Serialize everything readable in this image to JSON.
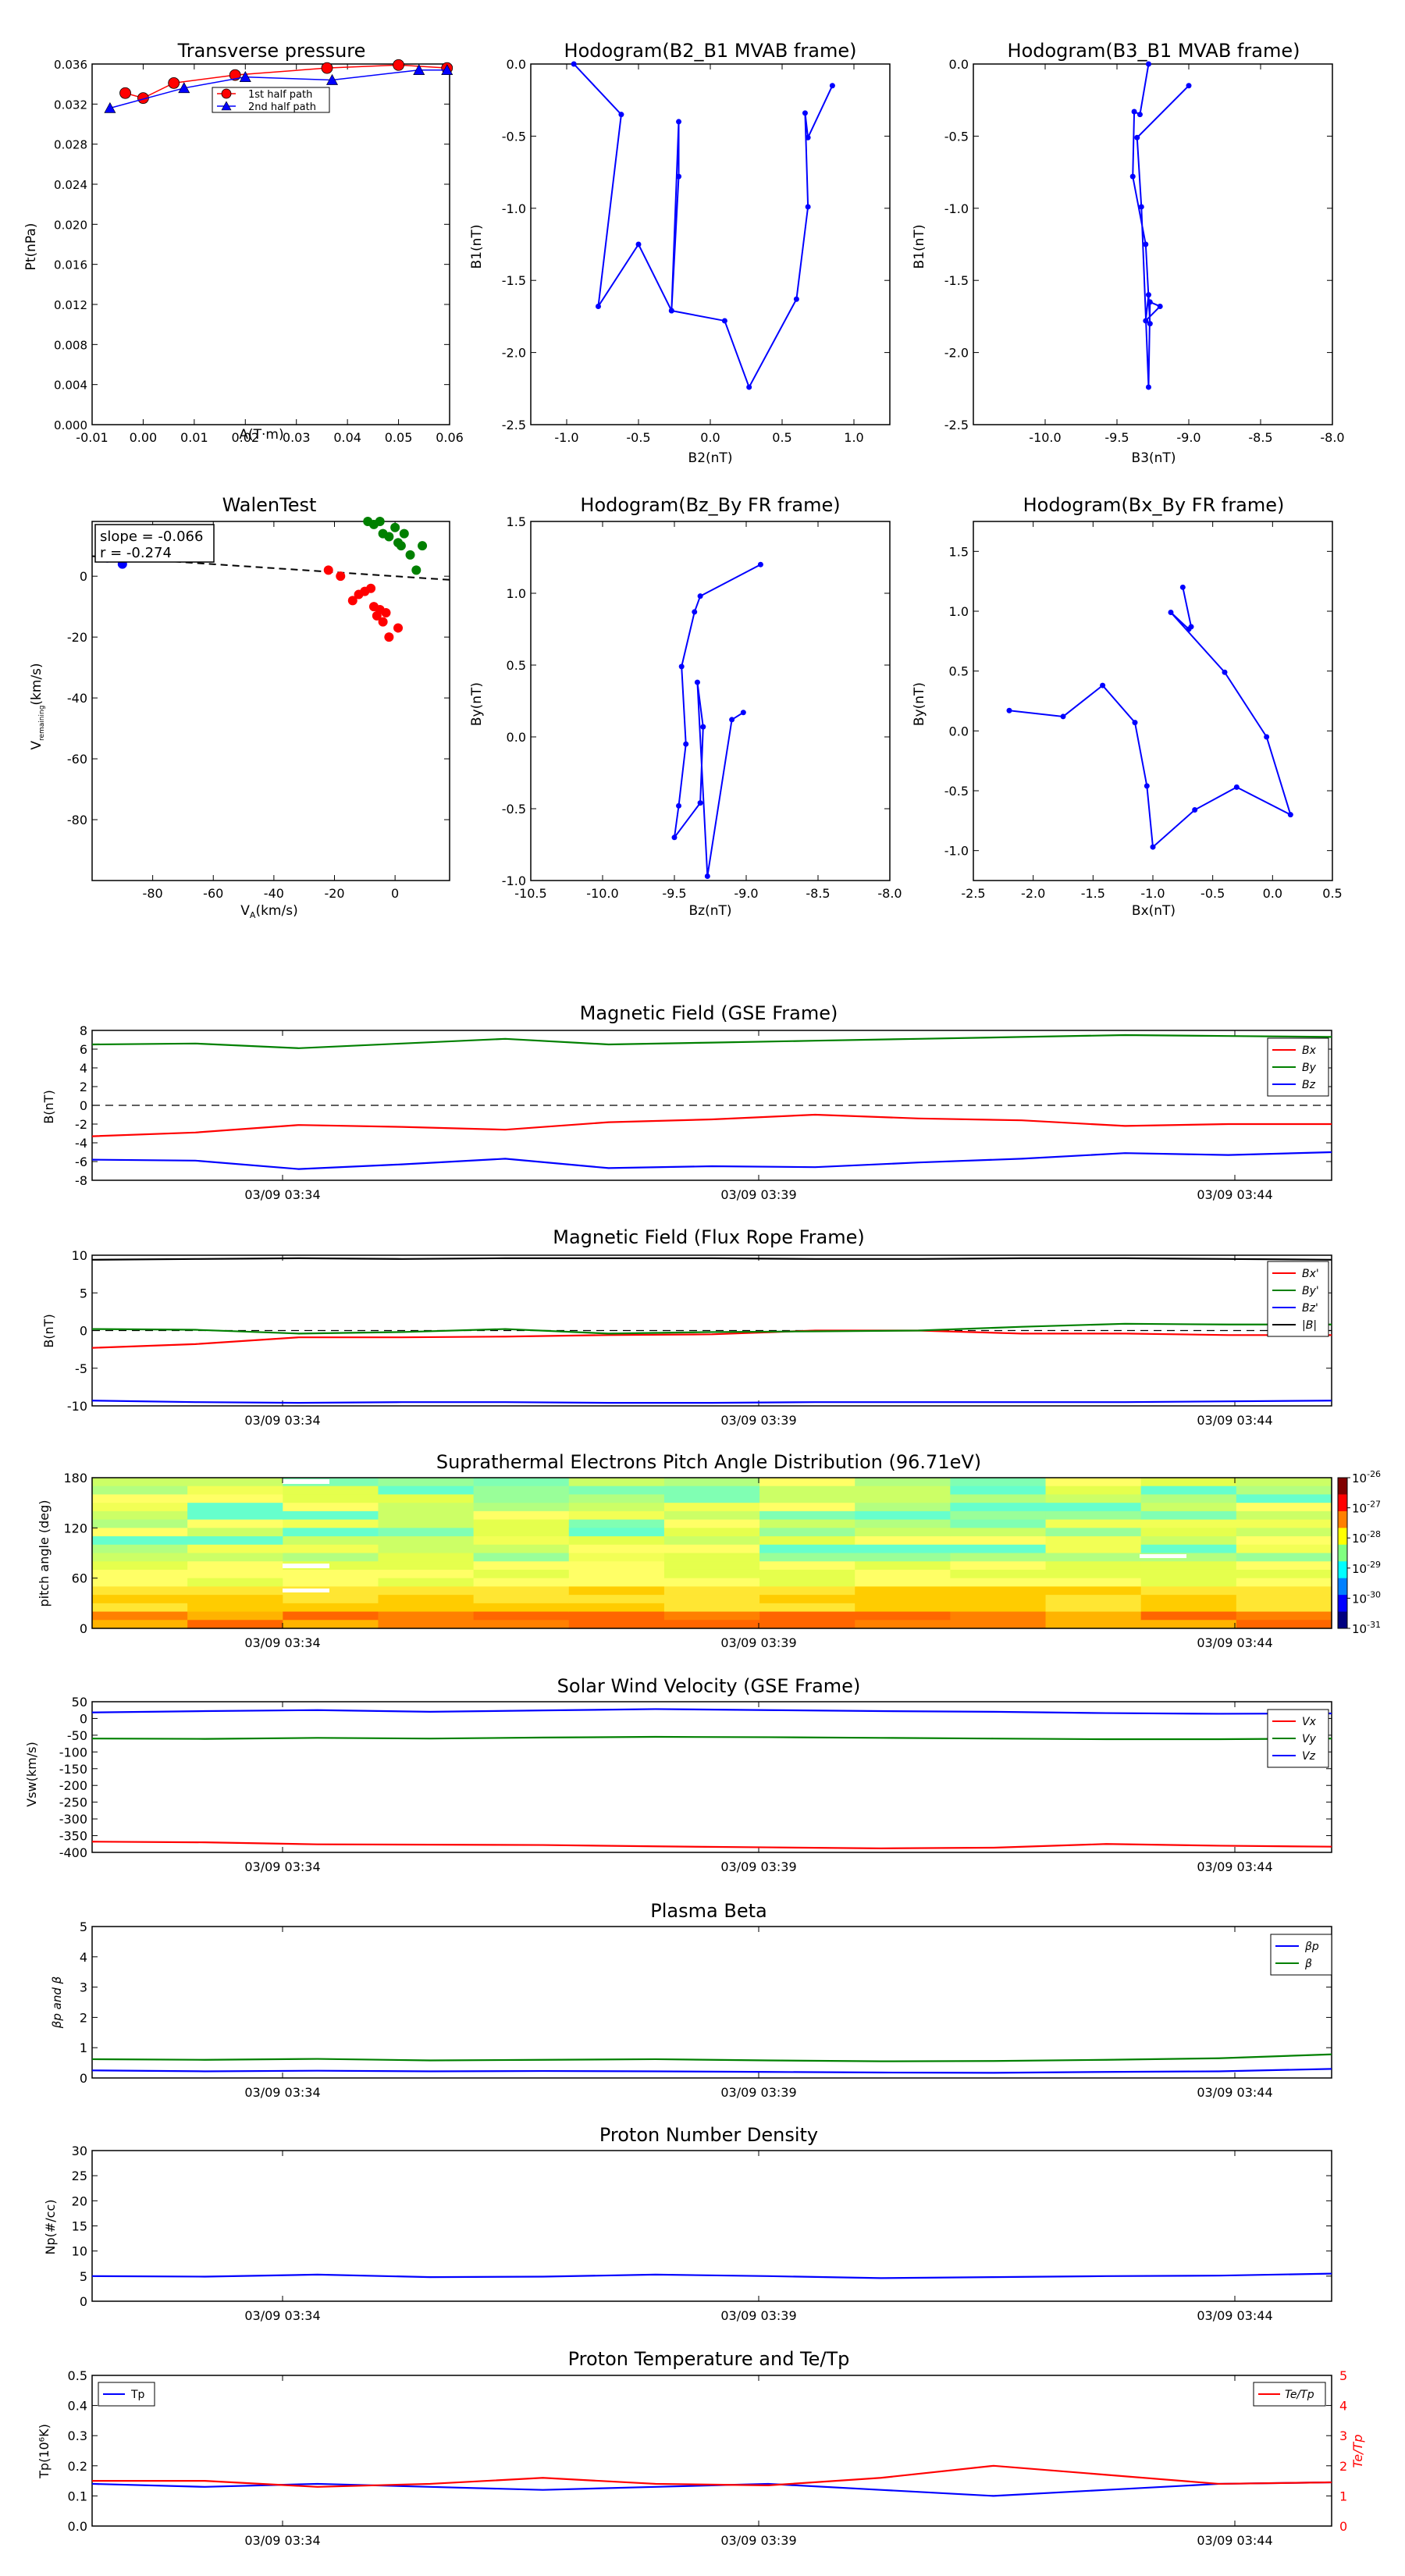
{
  "panels": {
    "transverse_pressure": {
      "title": "Transverse pressure",
      "xlabel": "A(T·m)",
      "ylabel": "Pt(nPa)",
      "xlim": [
        -0.01,
        0.06
      ],
      "ylim": [
        0.0,
        0.036
      ],
      "xticks": [
        "-0.01",
        "0.00",
        "0.01",
        "0.02",
        "0.03",
        "0.04",
        "0.05",
        "0.06"
      ],
      "yticks": [
        "0.000",
        "0.004",
        "0.008",
        "0.012",
        "0.016",
        "0.020",
        "0.024",
        "0.028",
        "0.032",
        "0.036"
      ],
      "legend": [
        "1st half path",
        "2nd half path"
      ],
      "series1": {
        "x": [
          -0.0035,
          0.0,
          0.006,
          0.018,
          0.036,
          0.05,
          0.0595
        ],
        "y": [
          0.0331,
          0.0326,
          0.0341,
          0.0349,
          0.0356,
          0.0359,
          0.0356
        ]
      },
      "series2": {
        "x": [
          -0.0065,
          0.008,
          0.02,
          0.037,
          0.054,
          0.0595
        ],
        "y": [
          0.0316,
          0.0336,
          0.0347,
          0.0344,
          0.0354,
          0.0354
        ]
      }
    },
    "hodo_b2b1": {
      "title": "Hodogram(B2_B1 MVAB frame)",
      "xlabel": "B2(nT)",
      "ylabel": "B1(nT)",
      "xlim": [
        -1.25,
        1.25
      ],
      "ylim": [
        -2.5,
        0.0
      ],
      "xticks": [
        "-1.0",
        "-0.5",
        "0.0",
        "0.5",
        "1.0"
      ],
      "yticks": [
        "-2.5",
        "-2.0",
        "-1.5",
        "-1.0",
        "-0.5",
        "0.0"
      ],
      "x": [
        -0.95,
        -0.62,
        -0.78,
        -0.5,
        -0.27,
        -0.22,
        -0.22,
        -0.27,
        0.1,
        0.27,
        0.6,
        0.68,
        0.66,
        0.68,
        0.85
      ],
      "y": [
        0.0,
        -0.35,
        -1.68,
        -1.25,
        -1.71,
        -0.78,
        -0.4,
        -1.71,
        -1.78,
        -2.24,
        -1.63,
        -0.99,
        -0.34,
        -0.51,
        -0.15
      ]
    },
    "hodo_b3b1": {
      "title": "Hodogram(B3_B1 MVAB frame)",
      "xlabel": "B3(nT)",
      "ylabel": "B1(nT)",
      "xlim": [
        -10.5,
        -8.0
      ],
      "ylim": [
        -2.5,
        0.0
      ],
      "xticks": [
        "-10.0",
        "-9.5",
        "-9.0",
        "-8.5",
        "-8.0"
      ],
      "yticks": [
        "-2.5",
        "-2.0",
        "-1.5",
        "-1.0",
        "-0.5",
        "0.0"
      ],
      "x": [
        -9.28,
        -9.34,
        -9.38,
        -9.39,
        -9.3,
        -9.27,
        -9.28,
        -9.3,
        -9.2,
        -9.27,
        -9.28,
        -9.33,
        -9.36,
        -9.0
      ],
      "y": [
        0.0,
        -0.35,
        -0.33,
        -0.78,
        -1.25,
        -1.8,
        -1.6,
        -1.78,
        -1.68,
        -1.65,
        -2.24,
        -0.99,
        -0.51,
        -0.15
      ]
    },
    "walen": {
      "title": "WalenTest",
      "xlabel": "V_A(km/s)",
      "ylabel": "V_remaining(km/s)",
      "xlim": [
        -100,
        18
      ],
      "ylim": [
        -100,
        18
      ],
      "xticks": [
        "-80",
        "-60",
        "-40",
        "-20",
        "0"
      ],
      "yticks": [
        "-80",
        "-60",
        "-40",
        "-20",
        "0"
      ],
      "slope_text": "slope = -0.066",
      "r_text": "r = -0.274",
      "slope": -0.066,
      "blue_points": {
        "x": [
          -95,
          -90
        ],
        "y": [
          6,
          4
        ]
      },
      "red_points": {
        "x": [
          -22,
          -18,
          -14,
          -12,
          -10,
          -8,
          -7,
          -6,
          -5,
          -4,
          -3,
          -2,
          1
        ],
        "y": [
          2,
          0,
          -8,
          -6,
          -5,
          -4,
          -10,
          -13,
          -11,
          -15,
          -12,
          -20,
          -17
        ]
      },
      "green_points": {
        "x": [
          -9,
          -7,
          -5,
          -4,
          -2,
          0,
          1,
          2,
          3,
          5,
          7,
          9
        ],
        "y": [
          18,
          17,
          18,
          14,
          13,
          16,
          11,
          10,
          14,
          7,
          2,
          10
        ]
      }
    },
    "hodo_bzby": {
      "title": "Hodogram(Bz_By FR frame)",
      "xlabel": "Bz(nT)",
      "ylabel": "By(nT)",
      "xlim": [
        -10.5,
        -8.0
      ],
      "ylim": [
        -1.0,
        1.5
      ],
      "xticks": [
        "-10.5",
        "-10.0",
        "-9.5",
        "-9.0",
        "-8.5",
        "-8.0"
      ],
      "yticks": [
        "-1.0",
        "-0.5",
        "0.0",
        "0.5",
        "1.0",
        "1.5"
      ],
      "x": [
        -8.9,
        -9.32,
        -9.36,
        -9.45,
        -9.42,
        -9.47,
        -9.5,
        -9.32,
        -9.3,
        -9.34,
        -9.27,
        -9.1,
        -9.02
      ],
      "y": [
        1.2,
        0.98,
        0.87,
        0.49,
        -0.05,
        -0.48,
        -0.7,
        -0.46,
        0.07,
        0.38,
        -0.97,
        0.12,
        0.17
      ]
    },
    "hodo_bxby": {
      "title": "Hodogram(Bx_By FR frame)",
      "xlabel": "Bx(nT)",
      "ylabel": "By(nT)",
      "xlim": [
        -2.5,
        0.5
      ],
      "ylim": [
        -1.25,
        1.75
      ],
      "xticks": [
        "-2.5",
        "-2.0",
        "-1.5",
        "-1.0",
        "-0.5",
        "0.0",
        "0.5"
      ],
      "yticks": [
        "-1.0",
        "-0.5",
        "0.0",
        "0.5",
        "1.0",
        "1.5"
      ],
      "x": [
        -0.75,
        -0.68,
        -0.7,
        -0.85,
        -0.4,
        -0.05,
        0.15,
        -0.3,
        -0.65,
        -1.0,
        -1.05,
        -1.15,
        -1.42,
        -1.75,
        -2.2
      ],
      "y": [
        1.2,
        0.87,
        0.85,
        0.99,
        0.49,
        -0.05,
        -0.7,
        -0.47,
        -0.66,
        -0.97,
        -0.46,
        0.07,
        0.38,
        0.12,
        0.17
      ]
    },
    "mag_gse": {
      "title": "Magnetic Field (GSE Frame)",
      "ylabel": "B(nT)",
      "ylim": [
        -8,
        8
      ],
      "yticks": [
        "-8",
        "-6",
        "-4",
        "-2",
        "0",
        "2",
        "4",
        "6",
        "8"
      ],
      "legend": [
        "Bx",
        "By",
        "Bz"
      ],
      "series": [
        {
          "name": "Bx",
          "color": "#ff0000",
          "values": [
            -3.3,
            -2.9,
            -2.1,
            -2.3,
            -2.6,
            -1.8,
            -1.5,
            -1.0,
            -1.4,
            -1.6,
            -2.2,
            -2.0,
            -2.0
          ]
        },
        {
          "name": "By",
          "color": "#008000",
          "values": [
            6.5,
            6.6,
            6.1,
            6.6,
            7.1,
            6.5,
            6.7,
            6.9,
            7.1,
            7.3,
            7.5,
            7.4,
            7.3
          ]
        },
        {
          "name": "Bz",
          "color": "#0000ff",
          "values": [
            -5.8,
            -5.9,
            -6.8,
            -6.3,
            -5.7,
            -6.7,
            -6.5,
            -6.6,
            -6.1,
            -5.7,
            -5.1,
            -5.3,
            -5.0
          ]
        }
      ]
    },
    "mag_fr": {
      "title": "Magnetic Field (Flux Rope Frame)",
      "ylabel": "B(nT)",
      "ylim": [
        -10,
        10
      ],
      "yticks": [
        "-10",
        "-5",
        "0",
        "5",
        "10"
      ],
      "legend": [
        "Bx'",
        "By'",
        "Bz'",
        "|B|"
      ],
      "series": [
        {
          "name": "Bx'",
          "color": "#ff0000",
          "values": [
            -2.3,
            -1.8,
            -0.9,
            -0.9,
            -0.8,
            -0.6,
            -0.5,
            0.0,
            0.0,
            -0.4,
            -0.4,
            -0.6,
            -0.6
          ]
        },
        {
          "name": "By'",
          "color": "#008000",
          "values": [
            0.2,
            0.1,
            -0.4,
            -0.2,
            0.2,
            -0.4,
            -0.2,
            -0.1,
            0.0,
            0.5,
            0.9,
            0.8,
            0.8
          ]
        },
        {
          "name": "Bz'",
          "color": "#0000ff",
          "values": [
            -9.3,
            -9.5,
            -9.6,
            -9.5,
            -9.5,
            -9.6,
            -9.6,
            -9.5,
            -9.5,
            -9.5,
            -9.5,
            -9.4,
            -9.3
          ]
        },
        {
          "name": "|B|",
          "color": "#000000",
          "values": [
            9.4,
            9.5,
            9.6,
            9.5,
            9.6,
            9.6,
            9.6,
            9.5,
            9.5,
            9.6,
            9.6,
            9.5,
            9.4
          ]
        }
      ]
    },
    "pad": {
      "title": "Suprathermal Electrons Pitch Angle Distribution (96.71eV)",
      "ylabel": "pitch angle (deg)",
      "yticks": [
        "0",
        "60",
        "120",
        "180"
      ],
      "cbar_ticks": [
        "10",
        "10",
        "10",
        "10",
        "10",
        "10"
      ],
      "cbar_exps": [
        "-26",
        "-27",
        "-28",
        "-29",
        "-30",
        "-31"
      ]
    },
    "vsw": {
      "title": "Solar Wind Velocity (GSE Frame)",
      "ylabel": "Vsw(km/s)",
      "ylim": [
        -400,
        50
      ],
      "yticks": [
        "-400",
        "-350",
        "-300",
        "-250",
        "-200",
        "-150",
        "-100",
        "-50",
        "0",
        "50"
      ],
      "legend": [
        "Vx",
        "Vy",
        "Vz"
      ],
      "series": [
        {
          "name": "Vx",
          "color": "#ff0000",
          "values": [
            -368,
            -370,
            -376,
            -377,
            -378,
            -382,
            -385,
            -388,
            -386,
            -375,
            -380,
            -383
          ]
        },
        {
          "name": "Vy",
          "color": "#008000",
          "values": [
            -60,
            -61,
            -58,
            -60,
            -57,
            -55,
            -56,
            -58,
            -60,
            -62,
            -62,
            -60
          ]
        },
        {
          "name": "Vz",
          "color": "#0000ff",
          "values": [
            18,
            22,
            25,
            20,
            24,
            28,
            25,
            22,
            20,
            16,
            14,
            15
          ]
        }
      ]
    },
    "beta": {
      "title": "Plasma Beta",
      "ylabel": "βp and β",
      "ylim": [
        0,
        5
      ],
      "yticks": [
        "0",
        "1",
        "2",
        "3",
        "4",
        "5"
      ],
      "legend": [
        "βp",
        "β"
      ],
      "series": [
        {
          "name": "βp",
          "color": "#0000ff",
          "values": [
            0.25,
            0.22,
            0.24,
            0.22,
            0.23,
            0.22,
            0.2,
            0.18,
            0.17,
            0.2,
            0.22,
            0.3
          ]
        },
        {
          "name": "β",
          "color": "#008000",
          "values": [
            0.62,
            0.6,
            0.63,
            0.58,
            0.6,
            0.62,
            0.58,
            0.55,
            0.56,
            0.6,
            0.65,
            0.78
          ]
        }
      ]
    },
    "np": {
      "title": "Proton Number Density",
      "ylabel": "Np(#/cc)",
      "ylim": [
        0,
        30
      ],
      "yticks": [
        "0",
        "5",
        "10",
        "15",
        "20",
        "25",
        "30"
      ],
      "series": [
        {
          "name": "Np",
          "color": "#0000ff",
          "values": [
            5.0,
            4.9,
            5.3,
            4.8,
            4.9,
            5.3,
            5.0,
            4.6,
            4.8,
            5.0,
            5.1,
            5.5
          ]
        }
      ]
    },
    "tp": {
      "title": "Proton Temperature and Te/Tp",
      "ylabel": "Tp(10⁶K)",
      "ylabel_right": "Te/Tp",
      "ylim": [
        0,
        0.5
      ],
      "ylim_right": [
        0,
        5
      ],
      "yticks": [
        "0.0",
        "0.1",
        "0.2",
        "0.3",
        "0.4",
        "0.5"
      ],
      "yticks_right": [
        "0",
        "1",
        "2",
        "3",
        "4",
        "5"
      ],
      "legend_left": "Tp",
      "legend_right": "Te/Tp",
      "series_tp": {
        "name": "Tp",
        "color": "#0000ff",
        "values": [
          0.14,
          0.13,
          0.14,
          0.13,
          0.12,
          0.13,
          0.14,
          0.12,
          0.1,
          0.12,
          0.14,
          0.145
        ]
      },
      "series_ratio": {
        "name": "Te/Tp",
        "color": "#ff0000",
        "values": [
          1.5,
          1.5,
          1.3,
          1.4,
          1.6,
          1.4,
          1.35,
          1.6,
          2.0,
          1.7,
          1.4,
          1.45
        ]
      }
    }
  },
  "time_axis": {
    "tick_labels": [
      "03/09 03:34",
      "03/09 03:39",
      "03/09 03:44"
    ]
  }
}
